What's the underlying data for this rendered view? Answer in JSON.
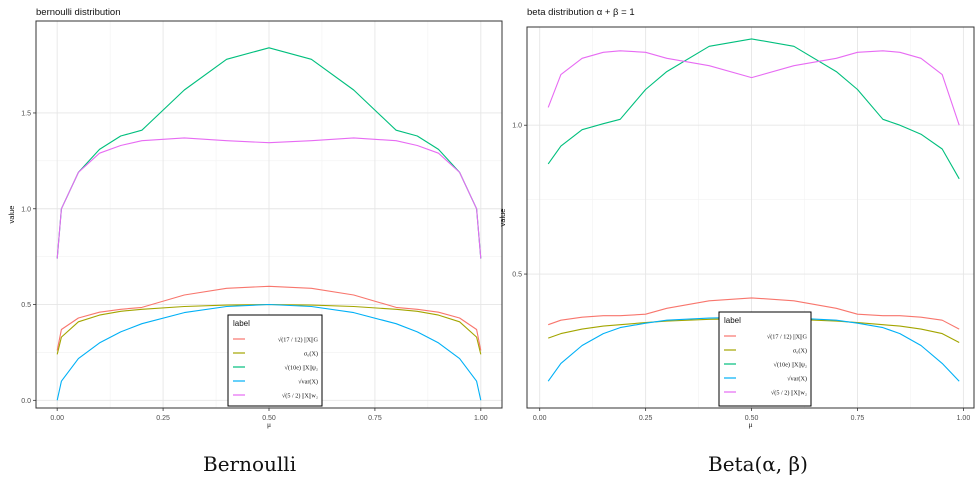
{
  "figures": [
    {
      "caption": "Bernoulli"
    },
    {
      "caption": "Beta(α, β)"
    }
  ],
  "legend": {
    "title": "label",
    "entries": [
      {
        "label": "√(17 / 12) ||X||G",
        "color": "#F8766D"
      },
      {
        "label": "σ₀(X)",
        "color": "#A3A500"
      },
      {
        "label": "√(10e) ||X||ψ₂",
        "color": "#00BF7D"
      },
      {
        "label": "√var(X)",
        "color": "#00B0F6"
      },
      {
        "label": "√(5 / 2) ||X||w₂",
        "color": "#E76BF3"
      }
    ]
  },
  "chart_data": [
    {
      "type": "line",
      "title": "bernoulli distribution",
      "xlabel": "μ",
      "ylabel": "value",
      "xlim": [
        -0.05,
        1.05
      ],
      "ylim": [
        -0.04,
        1.98
      ],
      "xticks": [
        "0.00",
        "0.25",
        "0.50",
        "0.75",
        "1.00"
      ],
      "xtick_values": [
        0,
        0.25,
        0.5,
        0.75,
        1.0
      ],
      "yticks": [
        "0.0",
        "0.5",
        "1.0",
        "1.5"
      ],
      "ytick_values": [
        0,
        0.5,
        1.0,
        1.5
      ],
      "grid": true,
      "x": [
        0.0,
        0.01,
        0.05,
        0.1,
        0.15,
        0.2,
        0.3,
        0.4,
        0.5,
        0.6,
        0.7,
        0.8,
        0.85,
        0.9,
        0.95,
        0.99,
        1.0
      ],
      "series": [
        {
          "name": "√(17 / 12) ||X||G",
          "color": "#F8766D",
          "values": [
            0.26,
            0.37,
            0.43,
            0.46,
            0.475,
            0.485,
            0.55,
            0.585,
            0.595,
            0.585,
            0.55,
            0.485,
            0.475,
            0.46,
            0.43,
            0.37,
            0.26
          ]
        },
        {
          "name": "σ₀(X)",
          "color": "#A3A500",
          "values": [
            0.24,
            0.33,
            0.41,
            0.445,
            0.465,
            0.475,
            0.49,
            0.497,
            0.5,
            0.497,
            0.49,
            0.475,
            0.465,
            0.445,
            0.41,
            0.33,
            0.24
          ]
        },
        {
          "name": "√(10e) ||X||ψ₂",
          "color": "#00BF7D",
          "values": [
            0.74,
            1.0,
            1.19,
            1.31,
            1.38,
            1.41,
            1.62,
            1.78,
            1.84,
            1.78,
            1.62,
            1.41,
            1.38,
            1.31,
            1.19,
            1.0,
            0.74
          ]
        },
        {
          "name": "√var(X)",
          "color": "#00B0F6",
          "values": [
            0.0,
            0.1,
            0.218,
            0.3,
            0.357,
            0.4,
            0.458,
            0.49,
            0.5,
            0.49,
            0.458,
            0.4,
            0.357,
            0.3,
            0.218,
            0.1,
            0.0
          ]
        },
        {
          "name": "√(5 / 2) ||X||w₂",
          "color": "#E76BF3",
          "values": [
            0.74,
            1.0,
            1.19,
            1.29,
            1.33,
            1.355,
            1.37,
            1.355,
            1.345,
            1.355,
            1.37,
            1.355,
            1.33,
            1.29,
            1.19,
            1.0,
            0.74
          ]
        }
      ]
    },
    {
      "type": "line",
      "title": "beta distribution α + β = 1",
      "xlabel": "μ",
      "ylabel": "value",
      "xlim": [
        -0.03,
        1.025
      ],
      "ylim": [
        0.05,
        1.33
      ],
      "xticks": [
        "0.00",
        "0.25",
        "0.50",
        "0.75",
        "1.00"
      ],
      "xtick_values": [
        0,
        0.25,
        0.5,
        0.75,
        1.0
      ],
      "yticks": [
        "0.5",
        "1.0"
      ],
      "ytick_values": [
        0.5,
        1.0
      ],
      "grid": true,
      "x": [
        0.02,
        0.05,
        0.1,
        0.15,
        0.19,
        0.25,
        0.3,
        0.4,
        0.5,
        0.6,
        0.7,
        0.75,
        0.81,
        0.85,
        0.9,
        0.95,
        0.99
      ],
      "series": [
        {
          "name": "√(17 / 12) ||X||G",
          "color": "#F8766D",
          "values": [
            0.33,
            0.345,
            0.355,
            0.36,
            0.36,
            0.365,
            0.385,
            0.41,
            0.42,
            0.41,
            0.385,
            0.365,
            0.36,
            0.36,
            0.355,
            0.345,
            0.315
          ]
        },
        {
          "name": "σ₀(X)",
          "color": "#A3A500",
          "values": [
            0.285,
            0.3,
            0.315,
            0.325,
            0.33,
            0.337,
            0.342,
            0.348,
            0.35,
            0.348,
            0.342,
            0.337,
            0.33,
            0.325,
            0.315,
            0.3,
            0.27
          ]
        },
        {
          "name": "√(10e) ||X||ψ₂",
          "color": "#00BF7D",
          "values": [
            0.87,
            0.93,
            0.985,
            1.005,
            1.02,
            1.12,
            1.18,
            1.265,
            1.29,
            1.265,
            1.18,
            1.12,
            1.02,
            1.0,
            0.97,
            0.92,
            0.82
          ]
        },
        {
          "name": "√var(X)",
          "color": "#00B0F6",
          "values": [
            0.14,
            0.2,
            0.26,
            0.3,
            0.32,
            0.335,
            0.345,
            0.352,
            0.355,
            0.352,
            0.345,
            0.335,
            0.32,
            0.3,
            0.26,
            0.2,
            0.14
          ]
        },
        {
          "name": "√(5 / 2) ||X||w₂",
          "color": "#E76BF3",
          "values": [
            1.06,
            1.17,
            1.225,
            1.245,
            1.25,
            1.245,
            1.225,
            1.2,
            1.16,
            1.2,
            1.225,
            1.245,
            1.25,
            1.245,
            1.225,
            1.17,
            1.0
          ]
        }
      ]
    }
  ]
}
